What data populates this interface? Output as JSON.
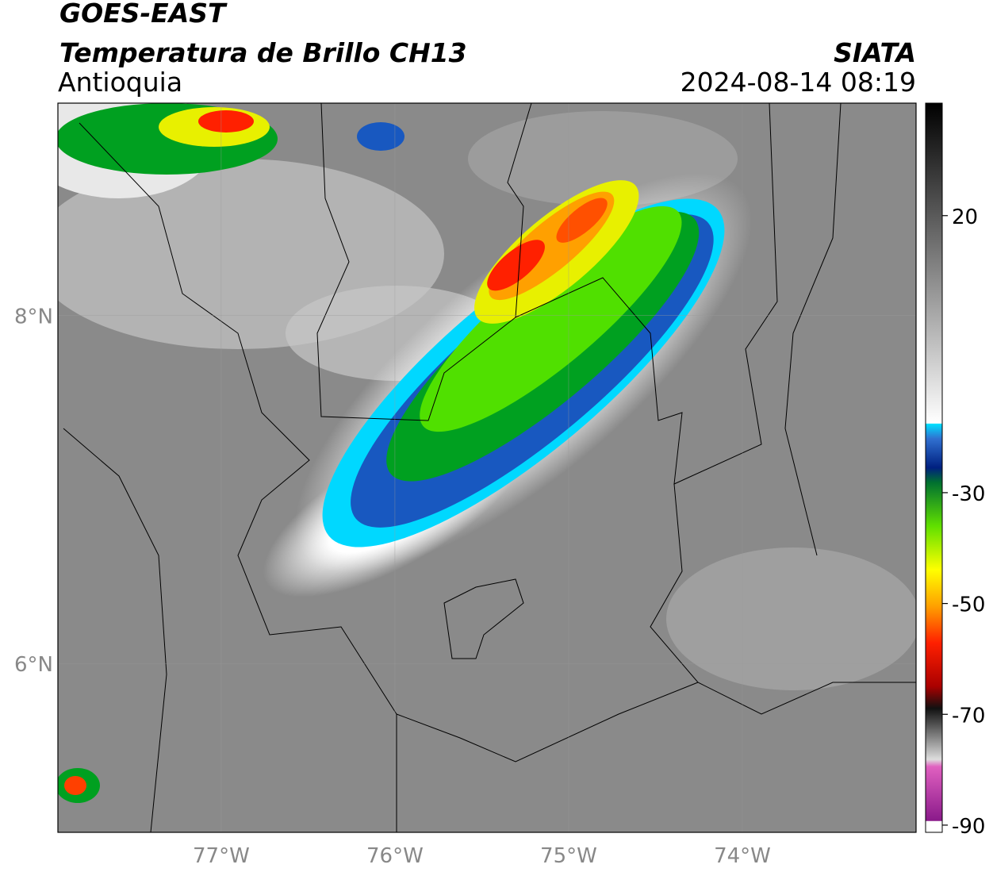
{
  "header": {
    "title": "GOES-EAST",
    "subtitle": "Temperatura de Brillo CH13",
    "region": "Antioquia",
    "source": "SIATA",
    "datetime": "2024-08-14 08:19"
  },
  "map": {
    "xlim": [
      -77.94,
      -73.0
    ],
    "ylim": [
      5.03,
      9.22
    ],
    "xticks": [
      {
        "value": -77,
        "label": "77°W"
      },
      {
        "value": -76,
        "label": "76°W"
      },
      {
        "value": -75,
        "label": "75°W"
      },
      {
        "value": -74,
        "label": "74°W"
      }
    ],
    "yticks": [
      {
        "value": 8,
        "label": "8°N"
      },
      {
        "value": 6,
        "label": "6°N"
      }
    ],
    "grid": true
  },
  "colorbar": {
    "lim": [
      -91.3,
      40.3
    ],
    "ticks": [
      20,
      -30,
      -50,
      -70,
      -90
    ]
  }
}
